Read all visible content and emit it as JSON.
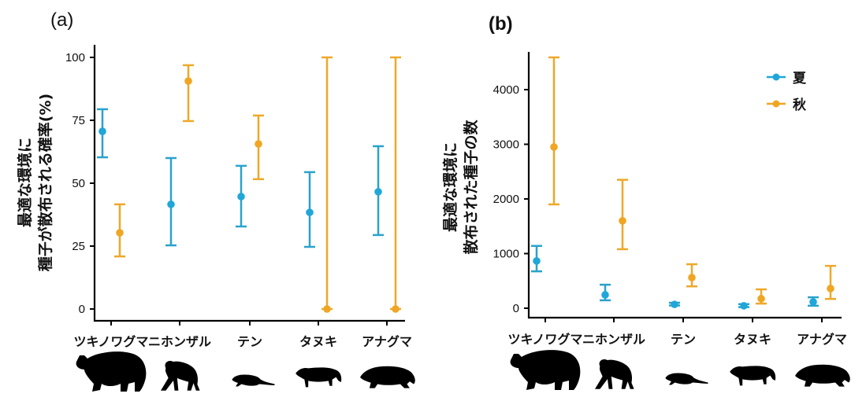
{
  "chart_data": [
    {
      "type": "scatter",
      "panel_label": "(a)",
      "title": "",
      "xlabel": "",
      "ylabel": [
        "最適な環境に",
        "種子が散布される確率(%)"
      ],
      "ylim": [
        0,
        100
      ],
      "yticks": [
        "0",
        "25",
        "50",
        "75",
        "100"
      ],
      "categories": [
        "ツキノワグマ",
        "ニホンザル",
        "テン",
        "タヌキ",
        "アナグマ"
      ],
      "series": [
        {
          "name": "夏",
          "color": "#1fa7d9",
          "values": [
            70.6,
            41.6,
            44.7,
            38.4,
            46.6
          ],
          "lower": [
            60.3,
            25.3,
            32.8,
            24.7,
            29.4
          ],
          "upper": [
            79.4,
            60.0,
            56.9,
            54.4,
            64.7
          ]
        },
        {
          "name": "秋",
          "color": "#f0a622",
          "values": [
            30.3,
            90.6,
            65.6,
            0,
            0
          ],
          "lower": [
            20.9,
            74.7,
            51.6,
            0,
            0
          ],
          "upper": [
            41.6,
            96.9,
            76.9,
            100,
            100
          ]
        }
      ],
      "grid": false,
      "legend": "none"
    },
    {
      "type": "scatter",
      "panel_label": "(b)",
      "title": "",
      "xlabel": "",
      "ylabel": [
        "最適な環境に",
        "散布された種子の数"
      ],
      "ylim": [
        0,
        4600
      ],
      "yticks": [
        "0",
        "1000",
        "2000",
        "3000",
        "4000"
      ],
      "categories": [
        "ツキノワグマ",
        "ニホンザル",
        "テン",
        "タヌキ",
        "アナグマ"
      ],
      "series": [
        {
          "name": "夏",
          "color": "#1fa7d9",
          "values": [
            865,
            245,
            70,
            45,
            115
          ],
          "lower": [
            675,
            145,
            50,
            20,
            45
          ],
          "upper": [
            1140,
            430,
            100,
            75,
            200
          ]
        },
        {
          "name": "秋",
          "color": "#f0a622",
          "values": [
            2950,
            1600,
            560,
            175,
            360
          ],
          "lower": [
            1900,
            1080,
            400,
            85,
            170
          ],
          "upper": [
            4590,
            2350,
            805,
            345,
            775
          ]
        }
      ],
      "grid": false,
      "legend": "top-right"
    }
  ],
  "animals": [
    {
      "name": "ツキノワグマ",
      "icon": "bear-icon"
    },
    {
      "name": "ニホンザル",
      "icon": "macaque-icon"
    },
    {
      "name": "テン",
      "icon": "marten-icon"
    },
    {
      "name": "タヌキ",
      "icon": "raccoon-dog-icon"
    },
    {
      "name": "アナグマ",
      "icon": "badger-icon"
    }
  ]
}
